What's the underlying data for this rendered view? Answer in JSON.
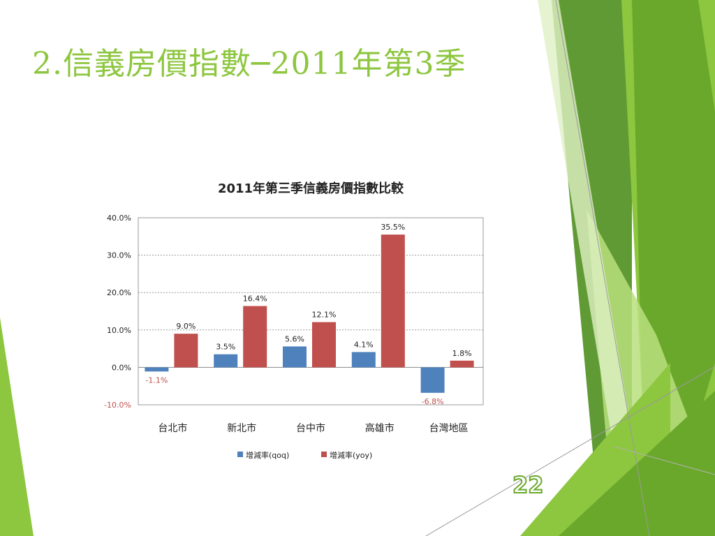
{
  "slide": {
    "title": "2.信義房價指數─2011年第3季",
    "page_number": "22"
  },
  "colors": {
    "accent_green": "#8dc63f",
    "dark_green": "#5f9a34",
    "light_green": "#b9df7c",
    "qoq": "#4f81bd",
    "yoy": "#c0504d",
    "negative_label": "#c0504d"
  },
  "chart_data": {
    "type": "bar",
    "title": "2011年第三季信義房價指數比較",
    "categories": [
      "台北市",
      "新北市",
      "台中市",
      "高雄市",
      "台灣地區"
    ],
    "series": [
      {
        "name": "增減率(qoq)",
        "values": [
          -1.1,
          3.5,
          5.6,
          4.1,
          -6.8
        ],
        "labels": [
          "-1.1%",
          "3.5%",
          "5.6%",
          "4.1%",
          "-6.8%"
        ]
      },
      {
        "name": "增減率(yoy)",
        "values": [
          9.0,
          16.4,
          12.1,
          35.5,
          1.8
        ],
        "labels": [
          "9.0%",
          "16.4%",
          "12.1%",
          "35.5%",
          "1.8%"
        ]
      }
    ],
    "ylim": [
      -10,
      40
    ],
    "yticks": [
      "-10.0%",
      "0.0%",
      "10.0%",
      "20.0%",
      "30.0%",
      "40.0%"
    ],
    "grid": true,
    "legend": "bottom"
  }
}
